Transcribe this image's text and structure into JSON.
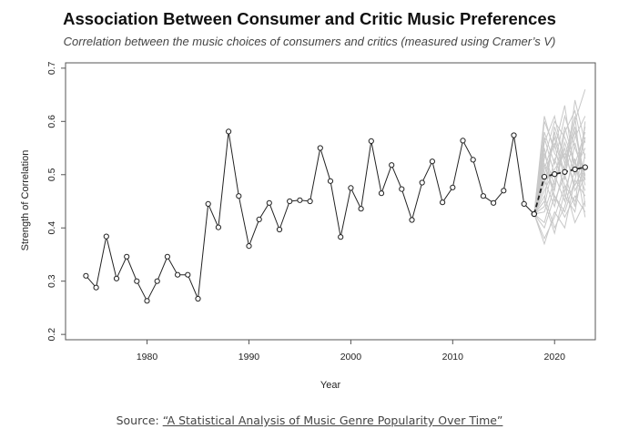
{
  "title": "Association Between Consumer and Critic Music Preferences",
  "subtitle": "Correlation between the music choices of consumers and critics (measured using Cramer’s V)",
  "source": {
    "prefix": "Source: ",
    "link_text": "“A Statistical Analysis of Music Genre Popularity Over Time”"
  },
  "chart_data": {
    "type": "line",
    "title": "Association Between Consumer and Critic Music Preferences",
    "subtitle": "Correlation between the music choices of consumers and critics (measured using Cramer’s V)",
    "xlabel": "Year",
    "ylabel": "Strength of Correlation",
    "xlim": [
      1972,
      2024
    ],
    "ylim": [
      0.19,
      0.71
    ],
    "x_ticks": [
      1980,
      1990,
      2000,
      2010,
      2020
    ],
    "y_ticks": [
      0.2,
      0.3,
      0.4,
      0.5,
      0.6,
      0.7
    ],
    "grid": false,
    "colors": {
      "observed": "#222222",
      "forecast": "#222222",
      "simulations": "#c8c8c8",
      "frame": "#555555"
    },
    "series": [
      {
        "style": "solid-with-circles",
        "x": [
          1974,
          1975,
          1976,
          1977,
          1978,
          1979,
          1980,
          1981,
          1982,
          1983,
          1984,
          1985,
          1986,
          1987,
          1988,
          1989,
          1990,
          1991,
          1992,
          1993,
          1994,
          1995,
          1996,
          1997,
          1998,
          1999,
          2000,
          2001,
          2002,
          2003,
          2004,
          2005,
          2006,
          2007,
          2008,
          2009,
          2010,
          2011,
          2012,
          2013,
          2014,
          2015,
          2016,
          2017,
          2018
        ],
        "y": [
          0.31,
          0.288,
          0.384,
          0.305,
          0.346,
          0.3,
          0.263,
          0.3,
          0.346,
          0.312,
          0.312,
          0.267,
          0.445,
          0.401,
          0.581,
          0.46,
          0.366,
          0.416,
          0.447,
          0.397,
          0.45,
          0.452,
          0.45,
          0.55,
          0.488,
          0.383,
          0.475,
          0.436,
          0.563,
          0.465,
          0.518,
          0.473,
          0.415,
          0.485,
          0.525,
          0.448,
          0.476,
          0.564,
          0.528,
          0.46,
          0.447,
          0.47,
          0.574,
          0.445,
          0.426
        ]
      },
      {
        "style": "dashed-with-circles",
        "x": [
          2018,
          2019,
          2020,
          2021,
          2022,
          2023
        ],
        "y": [
          0.426,
          0.496,
          0.501,
          0.505,
          0.51,
          0.514
        ]
      },
      {
        "style": "thin-gray-simulations",
        "x": [
          2018,
          2019,
          2020,
          2021,
          2022,
          2023
        ],
        "paths": [
          [
            0.426,
            0.56,
            0.61,
            0.52,
            0.58,
            0.49
          ],
          [
            0.426,
            0.45,
            0.39,
            0.47,
            0.53,
            0.42
          ],
          [
            0.426,
            0.6,
            0.55,
            0.63,
            0.5,
            0.57
          ],
          [
            0.426,
            0.37,
            0.43,
            0.4,
            0.49,
            0.46
          ],
          [
            0.426,
            0.52,
            0.47,
            0.58,
            0.62,
            0.53
          ],
          [
            0.426,
            0.48,
            0.58,
            0.5,
            0.44,
            0.6
          ],
          [
            0.426,
            0.41,
            0.48,
            0.55,
            0.47,
            0.51
          ],
          [
            0.426,
            0.57,
            0.5,
            0.45,
            0.56,
            0.48
          ],
          [
            0.426,
            0.49,
            0.44,
            0.52,
            0.6,
            0.66
          ],
          [
            0.426,
            0.44,
            0.53,
            0.48,
            0.41,
            0.45
          ],
          [
            0.426,
            0.53,
            0.6,
            0.57,
            0.52,
            0.58
          ],
          [
            0.426,
            0.46,
            0.4,
            0.44,
            0.51,
            0.55
          ],
          [
            0.426,
            0.58,
            0.52,
            0.61,
            0.55,
            0.5
          ],
          [
            0.426,
            0.4,
            0.46,
            0.42,
            0.46,
            0.43
          ],
          [
            0.426,
            0.51,
            0.57,
            0.49,
            0.64,
            0.56
          ],
          [
            0.426,
            0.47,
            0.51,
            0.54,
            0.48,
            0.52
          ],
          [
            0.426,
            0.55,
            0.45,
            0.5,
            0.57,
            0.61
          ],
          [
            0.426,
            0.43,
            0.49,
            0.59,
            0.52,
            0.47
          ],
          [
            0.426,
            0.5,
            0.56,
            0.46,
            0.43,
            0.54
          ],
          [
            0.426,
            0.61,
            0.54,
            0.51,
            0.59,
            0.49
          ],
          [
            0.426,
            0.38,
            0.42,
            0.48,
            0.45,
            0.5
          ],
          [
            0.426,
            0.54,
            0.48,
            0.56,
            0.5,
            0.59
          ],
          [
            0.426,
            0.45,
            0.59,
            0.53,
            0.61,
            0.44
          ],
          [
            0.426,
            0.52,
            0.46,
            0.43,
            0.49,
            0.57
          ]
        ]
      }
    ]
  }
}
